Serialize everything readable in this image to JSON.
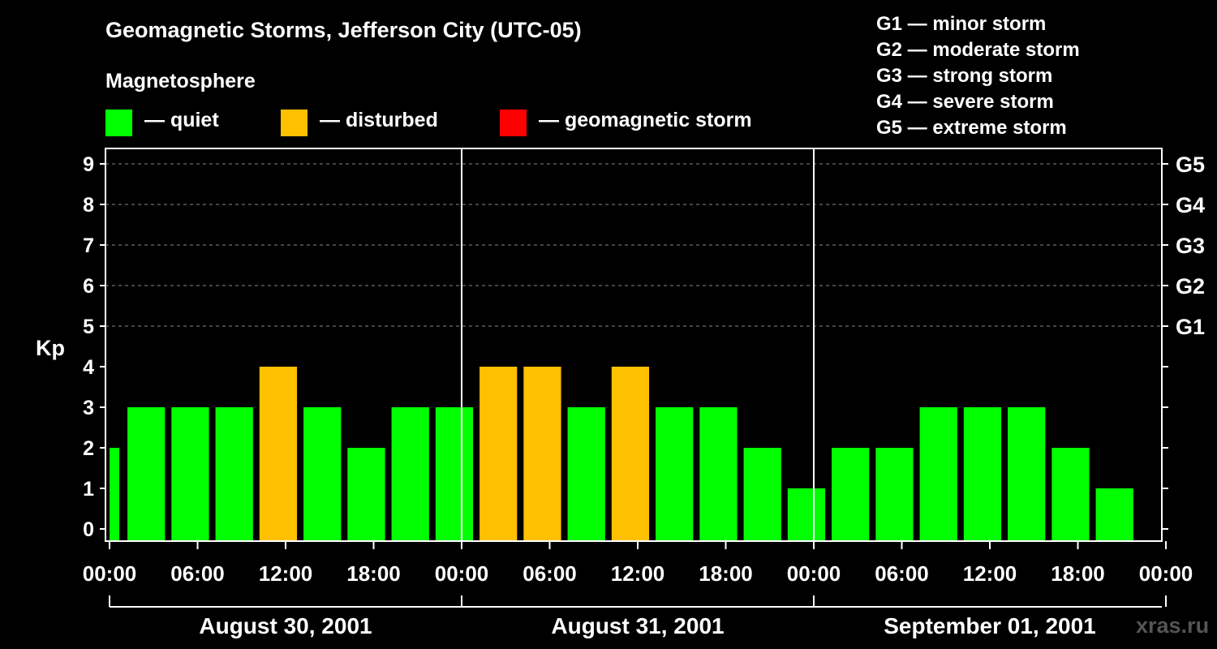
{
  "chart_data": {
    "type": "bar",
    "title": "Geomagnetic Storms, Jefferson City (UTC-05)",
    "subtitle": "Magnetosphere",
    "ylabel": "Kp",
    "ylim": [
      0,
      9
    ],
    "yticks": [
      "0",
      "1",
      "2",
      "3",
      "4",
      "5",
      "6",
      "7",
      "8",
      "9"
    ],
    "right_ticks": [
      {
        "kp": 5,
        "label": "G1"
      },
      {
        "kp": 6,
        "label": "G2"
      },
      {
        "kp": 7,
        "label": "G3"
      },
      {
        "kp": 8,
        "label": "G4"
      },
      {
        "kp": 9,
        "label": "G5"
      }
    ],
    "xticks": [
      "00:00",
      "06:00",
      "12:00",
      "18:00",
      "00:00",
      "06:00",
      "12:00",
      "18:00",
      "00:00",
      "06:00",
      "12:00",
      "18:00",
      "00:00"
    ],
    "days": [
      "August 30, 2001",
      "August 31, 2001",
      "September 01, 2001"
    ],
    "bar_interval_hours": 3,
    "first_bar_start_hour": -2,
    "values": [
      2,
      3,
      3,
      3,
      4,
      3,
      2,
      3,
      3,
      4,
      4,
      3,
      4,
      3,
      3,
      2,
      1,
      2,
      2,
      3,
      3,
      3,
      2,
      1
    ],
    "grid": "dashed at Kp 5-9",
    "legend": [
      {
        "label": "— quiet",
        "color": "#00ff00"
      },
      {
        "label": "— disturbed",
        "color": "#ffc000"
      },
      {
        "label": "— geomagnetic storm",
        "color": "#ff0000"
      }
    ],
    "thresholds": {
      "disturbed": 4,
      "storm": 5
    }
  },
  "g_scale": [
    "G1 — minor storm",
    "G2 — moderate storm",
    "G3 — strong storm",
    "G4 — severe storm",
    "G5 — extreme storm"
  ],
  "watermark": "xras.ru"
}
